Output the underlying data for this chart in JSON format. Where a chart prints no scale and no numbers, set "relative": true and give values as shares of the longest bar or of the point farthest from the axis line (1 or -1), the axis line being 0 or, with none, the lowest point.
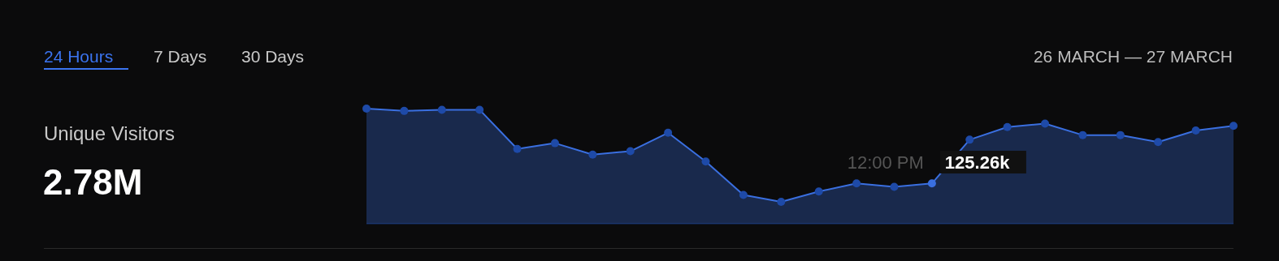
{
  "chart_data": {
    "type": "area",
    "title": "Unique Visitors",
    "subtitle": "2.78M",
    "annotations": [
      "24 Hours",
      "7 Days",
      "30 Days",
      "26 MARCH — 27 MARCH",
      "12:00 PM",
      "125.26k"
    ],
    "categories": [
      null,
      null,
      null,
      null,
      null,
      null,
      null,
      null,
      null,
      null,
      null,
      null,
      null,
      null,
      null,
      null,
      null,
      null,
      null,
      null,
      null,
      null,
      null,
      null
    ],
    "values": [
      1,
      0.98,
      0.99,
      0.99,
      0.65,
      0.7,
      0.6,
      0.63,
      0.79,
      0.54,
      0.25,
      0.19,
      0.28,
      0.35,
      0.32,
      0.35,
      0.73,
      0.84,
      0.87,
      0.77,
      0.77,
      0.71,
      0.81,
      0.85
    ],
    "color": "#3a6fe0",
    "relative": true,
    "marker": "circle"
  }
}
